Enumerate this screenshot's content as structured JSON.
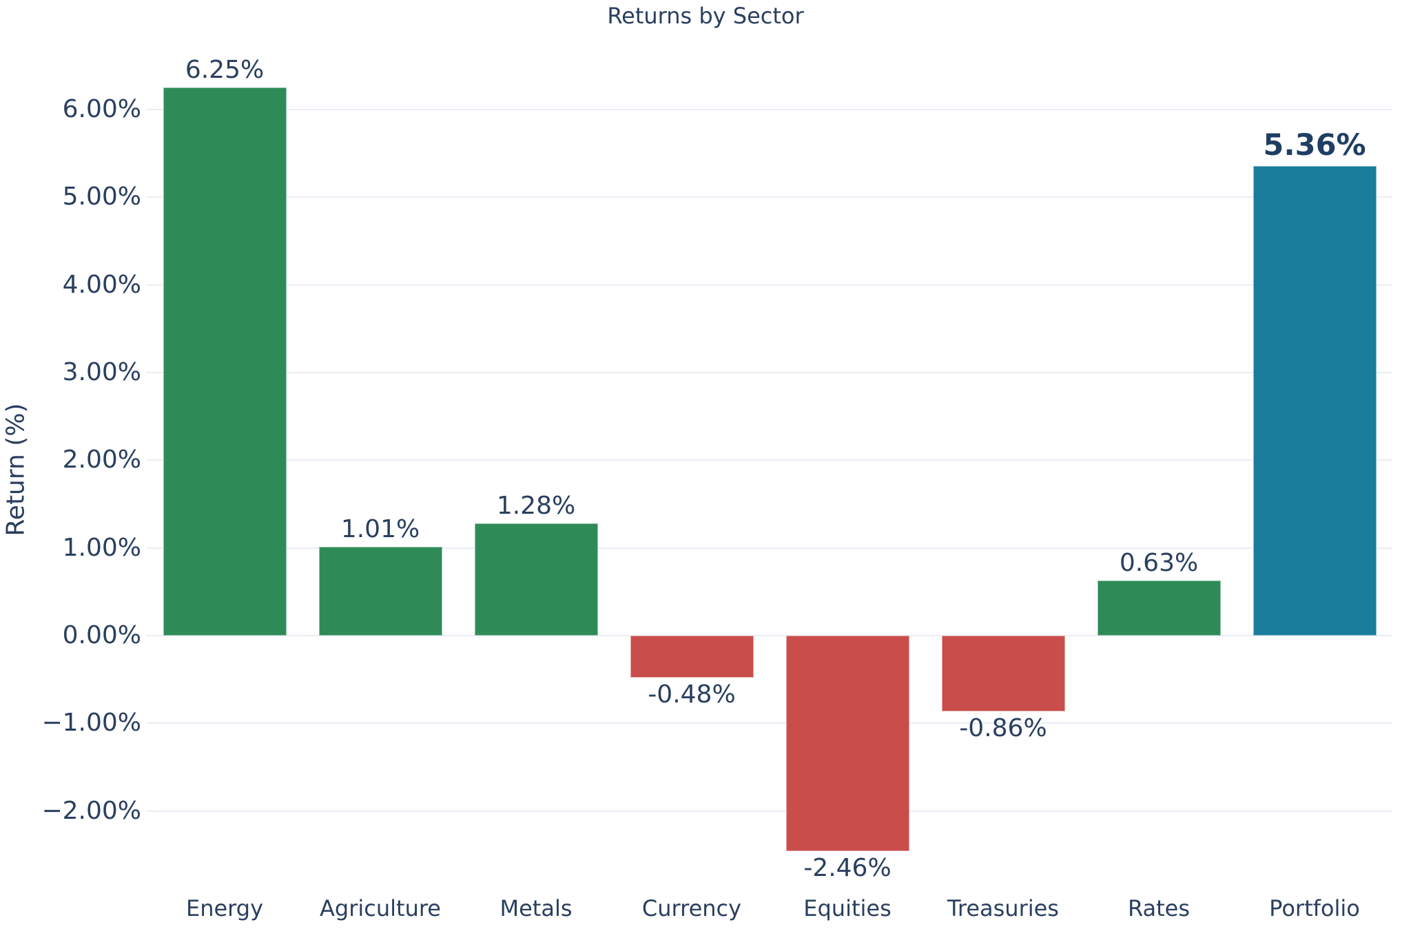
{
  "chart_data": {
    "type": "bar",
    "title": "Returns by Sector",
    "xlabel": "",
    "ylabel": "Return (%)",
    "categories": [
      "Energy",
      "Agriculture",
      "Metals",
      "Currency",
      "Equities",
      "Treasuries",
      "Rates",
      "Portfolio"
    ],
    "values": [
      6.25,
      1.01,
      1.28,
      -0.48,
      -2.46,
      -0.86,
      0.63,
      5.36
    ],
    "value_labels": [
      "6.25%",
      "1.01%",
      "1.28%",
      "-0.48%",
      "-2.46%",
      "-0.86%",
      "0.63%",
      "5.36%"
    ],
    "bar_colors": [
      "#2e8b57",
      "#2e8b57",
      "#2e8b57",
      "#c94d4b",
      "#c94d4b",
      "#c94d4b",
      "#2e8b57",
      "#1a7d9c"
    ],
    "emphasized_index": 7,
    "yticks": [
      6,
      5,
      4,
      3,
      2,
      1,
      0,
      -1,
      -2
    ],
    "ytick_labels": [
      "6.00%",
      "5.00%",
      "4.00%",
      "3.00%",
      "2.00%",
      "1.00%",
      "0.00%",
      "−1.00%",
      "−2.00%"
    ],
    "ylim": [
      -2.9,
      6.8
    ],
    "grid": true,
    "legend": "none",
    "colors": {
      "positive": "#2e8b57",
      "negative": "#c94d4b",
      "portfolio": "#1a7d9c",
      "text": "#2a3f5f",
      "emphasized_text": "#1f3e63",
      "grid": "#e9edf4",
      "background": "#ffffff"
    }
  }
}
